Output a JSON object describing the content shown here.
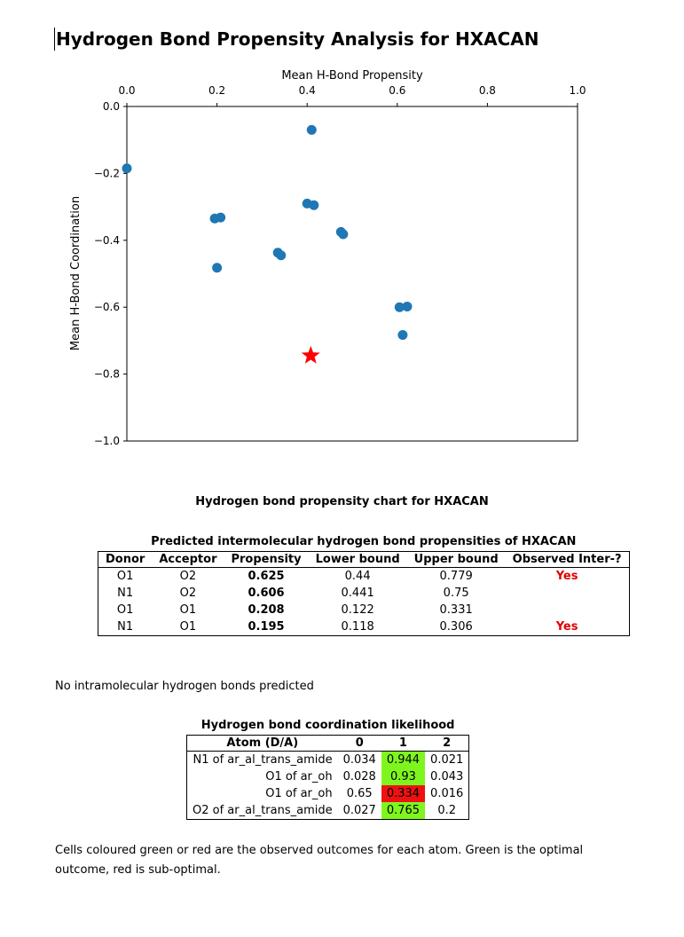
{
  "title": "Hydrogen Bond Propensity Analysis for HXACAN",
  "chart_data": {
    "type": "scatter",
    "xlabel": "Mean H-Bond Propensity",
    "ylabel": "Mean H-Bond Coordination",
    "xlim": [
      0.0,
      1.0
    ],
    "ylim": [
      -1.0,
      0.0
    ],
    "xticks": [
      "0.0",
      "0.2",
      "0.4",
      "0.6",
      "0.8",
      "1.0"
    ],
    "yticks": [
      "0.0",
      "−0.2",
      "−0.4",
      "−0.6",
      "−0.8",
      "−1.0"
    ],
    "x_axis_position": "top",
    "grid": false,
    "points": [
      {
        "x": 0.0,
        "y": -0.185
      },
      {
        "x": 0.41,
        "y": -0.07
      },
      {
        "x": 0.195,
        "y": -0.335
      },
      {
        "x": 0.208,
        "y": -0.332
      },
      {
        "x": 0.4,
        "y": -0.29
      },
      {
        "x": 0.415,
        "y": -0.295
      },
      {
        "x": 0.475,
        "y": -0.375
      },
      {
        "x": 0.48,
        "y": -0.382
      },
      {
        "x": 0.2,
        "y": -0.482
      },
      {
        "x": 0.335,
        "y": -0.437
      },
      {
        "x": 0.342,
        "y": -0.445
      },
      {
        "x": 0.605,
        "y": -0.6
      },
      {
        "x": 0.622,
        "y": -0.598
      },
      {
        "x": 0.612,
        "y": -0.683
      }
    ],
    "points_color": "#1f77b4",
    "highlight": {
      "x": 0.408,
      "y": -0.745,
      "marker": "star",
      "color": "#ff0000"
    }
  },
  "chart_caption": "Hydrogen bond propensity chart for HXACAN",
  "propensity_table": {
    "title": "Predicted intermolecular hydrogen bond propensities of HXACAN",
    "headers": [
      "Donor",
      "Acceptor",
      "Propensity",
      "Lower bound",
      "Upper bound",
      "Observed Inter-?"
    ],
    "rows": [
      {
        "donor": "O1",
        "acceptor": "O2",
        "propensity": "0.625",
        "lower": "0.44",
        "upper": "0.779",
        "observed": "Yes"
      },
      {
        "donor": "N1",
        "acceptor": "O2",
        "propensity": "0.606",
        "lower": "0.441",
        "upper": "0.75",
        "observed": ""
      },
      {
        "donor": "O1",
        "acceptor": "O1",
        "propensity": "0.208",
        "lower": "0.122",
        "upper": "0.331",
        "observed": ""
      },
      {
        "donor": "N1",
        "acceptor": "O1",
        "propensity": "0.195",
        "lower": "0.118",
        "upper": "0.306",
        "observed": "Yes"
      }
    ]
  },
  "intramolecular_note": "No intramolecular hydrogen bonds predicted",
  "coordination_table": {
    "title": "Hydrogen bond coordination likelihood",
    "headers": [
      "Atom (D/A)",
      "0",
      "1",
      "2"
    ],
    "rows": [
      {
        "atom": "N1 of  ar_al_trans_amide",
        "c0": "0.034",
        "c1": "0.944",
        "c2": "0.021",
        "highlight": "c1",
        "highlight_color": "green"
      },
      {
        "atom": "O1 of  ar_oh",
        "c0": "0.028",
        "c1": "0.93",
        "c2": "0.043",
        "highlight": "c1",
        "highlight_color": "green"
      },
      {
        "atom": "O1 of  ar_oh",
        "c0": "0.65",
        "c1": "0.334",
        "c2": "0.016",
        "highlight": "c1",
        "highlight_color": "red"
      },
      {
        "atom": "O2 of  ar_al_trans_amide",
        "c0": "0.027",
        "c1": "0.765",
        "c2": "0.2",
        "highlight": "c1",
        "highlight_color": "green"
      }
    ]
  },
  "footnote": "Cells coloured green or red are the observed outcomes for each atom. Green is the optimal outcome, red is sub-optimal."
}
